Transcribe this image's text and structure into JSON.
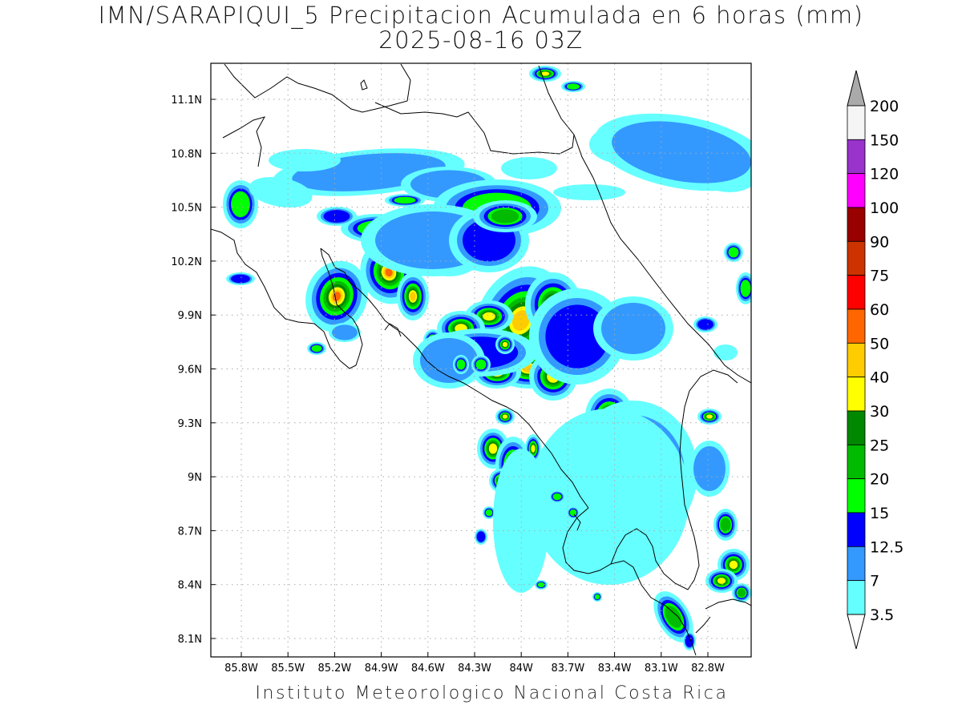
{
  "header": {
    "title": "IMN/SARAPIQUI_5 Precipitacion Acumulada en 6 horas (mm)",
    "valid_time": "2025-08-16 03Z"
  },
  "footer": {
    "credit": "Instituto Meteorologico Nacional Costa Rica"
  },
  "axes": {
    "lat_labels": [
      "11.1N",
      "10.8N",
      "10.5N",
      "10.2N",
      "9.9N",
      "9.6N",
      "9.3N",
      "9N",
      "8.7N",
      "8.4N",
      "8.1N"
    ],
    "lon_labels": [
      "85.8W",
      "85.5W",
      "85.2W",
      "84.9W",
      "84.6W",
      "84.3W",
      "84W",
      "83.7W",
      "83.4W",
      "83.1W",
      "82.8W"
    ]
  },
  "colorbar": {
    "unit": "mm",
    "labels": [
      "200",
      "150",
      "120",
      "100",
      "90",
      "75",
      "60",
      "50",
      "40",
      "30",
      "25",
      "20",
      "15",
      "12.5",
      "7",
      "3.5"
    ],
    "colors": [
      "#f5f5f5",
      "#9933cc",
      "#ff00ff",
      "#990000",
      "#cc3300",
      "#ff0000",
      "#ff6600",
      "#ffcc00",
      "#ffff00",
      "#008800",
      "#00bb00",
      "#00ff00",
      "#0000ff",
      "#3399ff",
      "#66ffff"
    ],
    "over_color": "#aaaaaa"
  },
  "palette": {
    "light_cyan": "#66ffff",
    "light_blue": "#3399ff",
    "blue": "#0000ff",
    "lime": "#00ff00",
    "green": "#00bb00",
    "dark_green": "#008800",
    "yellow": "#ffff00",
    "gold": "#ffcc00",
    "orange": "#ff6600",
    "red": "#ff0000",
    "grid": "#aaaaaa",
    "coast": "#000000"
  }
}
